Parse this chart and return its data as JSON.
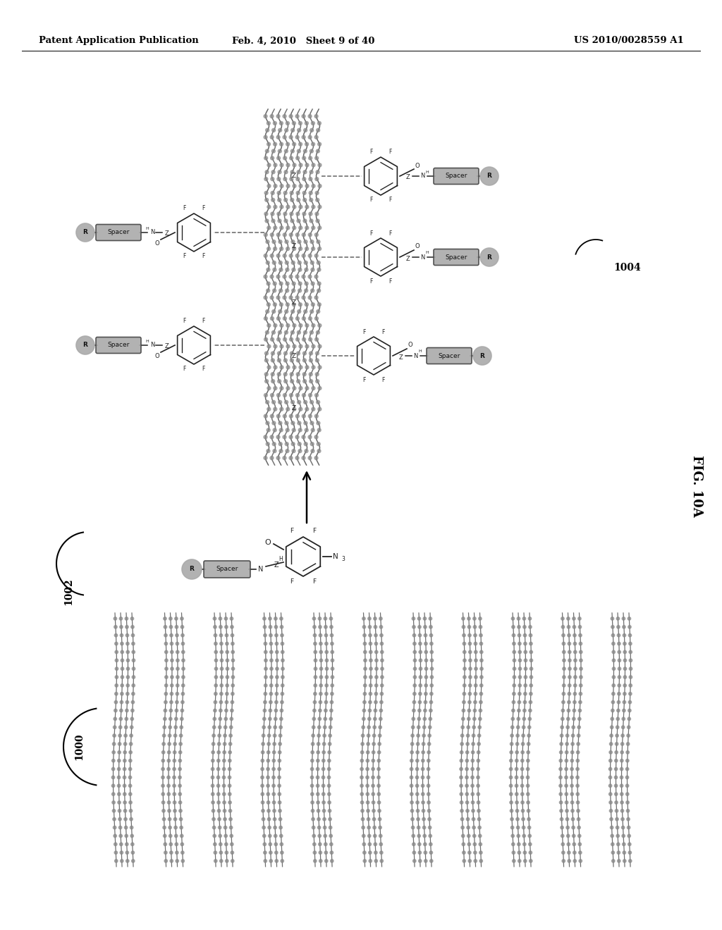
{
  "header_left": "Patent Application Publication",
  "header_center": "Feb. 4, 2010   Sheet 9 of 40",
  "header_right": "US 2010/0028559 A1",
  "fig_label": "FIG. 10A",
  "label_1000": "1000",
  "label_1002": "1002",
  "label_1004": "1004",
  "bg_color": "#ffffff",
  "text_color": "#000000",
  "header_fontsize": 9.5,
  "fig_label_fontsize": 13
}
